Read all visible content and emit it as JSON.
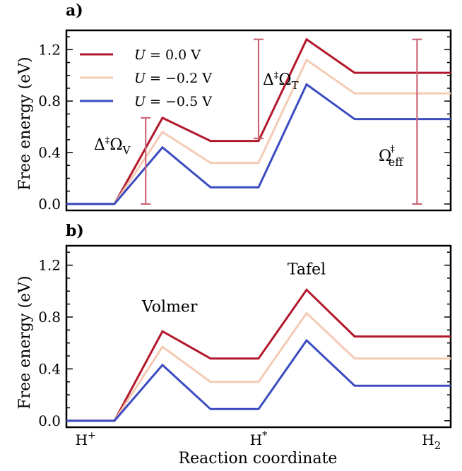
{
  "chart_data": [
    {
      "type": "line",
      "panel_label": "a)",
      "ylabel": "Free energy (eV)",
      "xlabel": "",
      "ylim": [
        -0.05,
        1.35
      ],
      "yticks": [
        0.0,
        0.4,
        0.8,
        1.2
      ],
      "ytick_labels": [
        "0.0",
        "0.4",
        "0.8",
        "1.2"
      ],
      "x": [
        0,
        1,
        2,
        3,
        4,
        5,
        6,
        7,
        8
      ],
      "series": [
        {
          "name": "U = 0.0 V",
          "color": "#b2182b",
          "values": [
            0.0,
            0.0,
            0.67,
            0.49,
            0.49,
            1.28,
            1.02,
            1.02,
            1.02
          ]
        },
        {
          "name": "U = -0.2 V",
          "color": "#f4cbb4",
          "values": [
            0.0,
            0.0,
            0.56,
            0.32,
            0.32,
            1.12,
            0.86,
            0.86,
            0.86
          ]
        },
        {
          "name": "U = -0.5 V",
          "color": "#3b4cc0",
          "values": [
            0.0,
            0.0,
            0.44,
            0.13,
            0.13,
            0.93,
            0.66,
            0.66,
            0.66
          ]
        }
      ],
      "legend": {
        "placement": "top-left",
        "entries": [
          {
            "prefix": "U",
            "value": "= 0.0 V"
          },
          {
            "prefix": "U",
            "value": "= −0.2 V"
          },
          {
            "prefix": "U",
            "value": "= −0.5 V"
          }
        ]
      },
      "annotations": {
        "color": "#cc6677",
        "volmer_barrier": {
          "text": "Δ‡ΩV",
          "main": "Δ",
          "sup": "‡",
          "omega": "Ω",
          "sub": "V",
          "x": 1.65,
          "y_range": [
            0.0,
            0.67
          ]
        },
        "tafel_barrier": {
          "text": "Δ‡ΩT",
          "main": "Δ",
          "sup": "‡",
          "omega": "Ω",
          "sub": "T",
          "x": 4.0,
          "y_range": [
            0.51,
            1.28
          ]
        },
        "effective_barrier": {
          "text": "Ω‡eff",
          "main": "Ω",
          "sup": "‡",
          "sub": "eff",
          "x": 7.3,
          "y_range": [
            0.0,
            1.28
          ]
        }
      }
    },
    {
      "type": "line",
      "panel_label": "b)",
      "ylabel": "Free energy (eV)",
      "xlabel": "Reaction coordinate",
      "ylim": [
        -0.05,
        1.35
      ],
      "yticks": [
        0.0,
        0.4,
        0.8,
        1.2
      ],
      "ytick_labels": [
        "0.0",
        "0.4",
        "0.8",
        "1.2"
      ],
      "x": [
        0,
        1,
        2,
        3,
        4,
        5,
        6,
        7,
        8
      ],
      "xtick_labels": [
        {
          "main": "H",
          "sup": "+",
          "sub": "",
          "x": 0.4
        },
        {
          "main": "H",
          "sup": "*",
          "sub": "",
          "x": 4.0
        },
        {
          "main": "H",
          "sup": "",
          "sub": "2",
          "x": 7.6
        }
      ],
      "series": [
        {
          "name": "U = 0.0 V",
          "color": "#b2182b",
          "values": [
            0.0,
            0.0,
            0.69,
            0.48,
            0.48,
            1.01,
            0.65,
            0.65,
            0.65
          ]
        },
        {
          "name": "U = -0.2 V",
          "color": "#f4cbb4",
          "values": [
            0.0,
            0.0,
            0.57,
            0.3,
            0.3,
            0.83,
            0.48,
            0.48,
            0.48
          ]
        },
        {
          "name": "U = -0.5 V",
          "color": "#3b4cc0",
          "values": [
            0.0,
            0.0,
            0.43,
            0.09,
            0.09,
            0.62,
            0.27,
            0.27,
            0.27
          ]
        }
      ],
      "annotations": {
        "volmer": {
          "text": "Volmer",
          "x": 2.15,
          "y": 0.84
        },
        "tafel": {
          "text": "Tafel",
          "x": 5.0,
          "y": 1.13
        }
      }
    }
  ]
}
